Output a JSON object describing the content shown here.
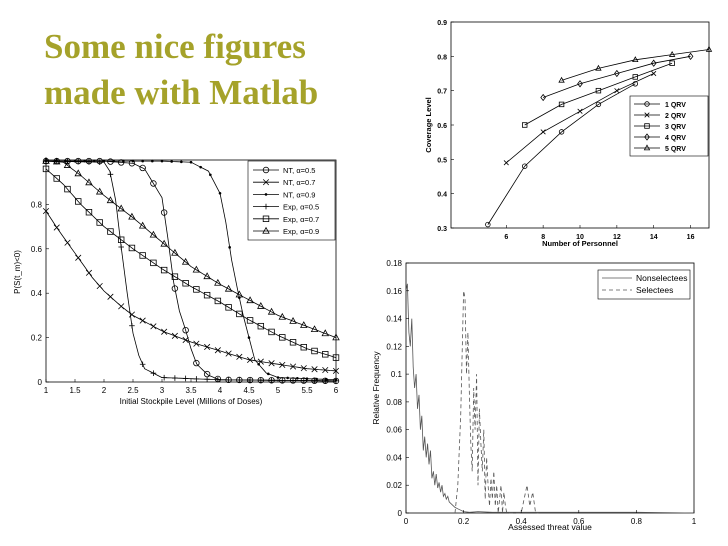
{
  "slide": {
    "title": "Some nice figures made with Matlab"
  },
  "chart_data": [
    {
      "type": "line",
      "xlabel": "Initial Stockpile Level (Millions of Doses)",
      "ylabel": "P(S(t_m)<0)",
      "xlim": [
        1,
        6
      ],
      "ylim": [
        0,
        1
      ],
      "xticks": [
        "1",
        "1.5",
        "2",
        "2.5",
        "3",
        "3.5",
        "4",
        "4.5",
        "5",
        "5.5",
        "6"
      ],
      "yticks": [
        "0",
        "0.2",
        "0.4",
        "0.6",
        "0.8"
      ],
      "legend_position": "top-right",
      "grid": false,
      "series": [
        {
          "name": "NT, α=0.5",
          "marker": "circle"
        },
        {
          "name": "NT, α=0.7",
          "marker": "x"
        },
        {
          "name": "NT, α=0.9",
          "marker": "dot"
        },
        {
          "name": "Exp, α=0.5",
          "marker": "plus"
        },
        {
          "name": "Exp, α=0.7",
          "marker": "square"
        },
        {
          "name": "Exp, α=0.9",
          "marker": "triangle"
        }
      ],
      "curves": [
        {
          "marker": "circle",
          "x0": 1,
          "x1": 6,
          "points": [
            [
              1,
              0.995
            ],
            [
              2,
              0.995
            ],
            [
              2.5,
              0.985
            ],
            [
              2.7,
              0.96
            ],
            [
              3,
              0.83
            ],
            [
              3.1,
              0.65
            ],
            [
              3.2,
              0.45
            ],
            [
              3.3,
              0.32
            ],
            [
              3.4,
              0.24
            ],
            [
              3.5,
              0.15
            ],
            [
              3.6,
              0.08
            ],
            [
              3.8,
              0.03
            ],
            [
              4,
              0.01
            ],
            [
              6,
              0.005
            ]
          ]
        },
        {
          "marker": "x",
          "x0": 1,
          "x1": 6,
          "points": [
            [
              1,
              0.77
            ],
            [
              1.2,
              0.69
            ],
            [
              1.5,
              0.58
            ],
            [
              1.8,
              0.47
            ],
            [
              2,
              0.41
            ],
            [
              2.3,
              0.34
            ],
            [
              2.5,
              0.3
            ],
            [
              3,
              0.23
            ],
            [
              3.5,
              0.18
            ],
            [
              4,
              0.14
            ],
            [
              4.5,
              0.1
            ],
            [
              5,
              0.08
            ],
            [
              5.5,
              0.06
            ],
            [
              6,
              0.05
            ]
          ]
        },
        {
          "marker": "dot",
          "x0": 1,
          "x1": 6,
          "points": [
            [
              1,
              0.995
            ],
            [
              3,
              0.995
            ],
            [
              3.5,
              0.99
            ],
            [
              3.8,
              0.95
            ],
            [
              4,
              0.85
            ],
            [
              4.1,
              0.72
            ],
            [
              4.2,
              0.55
            ],
            [
              4.3,
              0.42
            ],
            [
              4.4,
              0.3
            ],
            [
              4.5,
              0.2
            ],
            [
              4.6,
              0.1
            ],
            [
              4.8,
              0.04
            ],
            [
              5,
              0.02
            ],
            [
              6,
              0.01
            ]
          ]
        },
        {
          "marker": "plus",
          "x0": 1,
          "x1": 6,
          "points": [
            [
              1,
              0.995
            ],
            [
              2,
              0.99
            ],
            [
              2.1,
              0.95
            ],
            [
              2.2,
              0.82
            ],
            [
              2.3,
              0.6
            ],
            [
              2.4,
              0.4
            ],
            [
              2.5,
              0.22
            ],
            [
              2.6,
              0.12
            ],
            [
              2.7,
              0.06
            ],
            [
              3,
              0.02
            ],
            [
              4,
              0.01
            ],
            [
              6,
              0.005
            ]
          ]
        },
        {
          "marker": "square",
          "x0": 1,
          "x1": 6,
          "points": [
            [
              1,
              0.96
            ],
            [
              1.3,
              0.89
            ],
            [
              1.6,
              0.8
            ],
            [
              2,
              0.7
            ],
            [
              2.5,
              0.6
            ],
            [
              3,
              0.51
            ],
            [
              3.5,
              0.43
            ],
            [
              4,
              0.36
            ],
            [
              4.5,
              0.28
            ],
            [
              5,
              0.21
            ],
            [
              5.5,
              0.15
            ],
            [
              6,
              0.11
            ]
          ]
        },
        {
          "marker": "triangle",
          "x0": 1,
          "x1": 6,
          "points": [
            [
              1,
              0.995
            ],
            [
              1.3,
              0.99
            ],
            [
              1.6,
              0.93
            ],
            [
              2,
              0.84
            ],
            [
              2.5,
              0.74
            ],
            [
              3,
              0.63
            ],
            [
              3.5,
              0.52
            ],
            [
              4,
              0.44
            ],
            [
              4.5,
              0.37
            ],
            [
              5,
              0.3
            ],
            [
              5.5,
              0.25
            ],
            [
              6,
              0.2
            ]
          ]
        }
      ]
    },
    {
      "type": "line",
      "xlabel": "Number of Personnel",
      "ylabel": "Coverage Level",
      "xlim": [
        3,
        17
      ],
      "ylim": [
        0.3,
        0.9
      ],
      "xticks": [
        "6",
        "8",
        "10",
        "12",
        "14",
        "16"
      ],
      "yticks": [
        "0.3",
        "0.4",
        "0.5",
        "0.6",
        "0.7",
        "0.8",
        "0.9"
      ],
      "legend_position": "bottom-right",
      "grid": false,
      "series": [
        {
          "name": "1 QRV",
          "marker": "circle",
          "x": [
            5,
            7,
            9,
            11,
            13
          ],
          "y": [
            0.31,
            0.48,
            0.58,
            0.66,
            0.72
          ]
        },
        {
          "name": "2 QRV",
          "marker": "x",
          "x": [
            6,
            8,
            10,
            12,
            14
          ],
          "y": [
            0.49,
            0.58,
            0.64,
            0.7,
            0.75
          ]
        },
        {
          "name": "3 QRV",
          "marker": "square",
          "x": [
            7,
            9,
            11,
            13,
            15
          ],
          "y": [
            0.6,
            0.66,
            0.7,
            0.74,
            0.78
          ]
        },
        {
          "name": "4 QRV",
          "marker": "diamond",
          "x": [
            8,
            10,
            12,
            14,
            16
          ],
          "y": [
            0.68,
            0.72,
            0.75,
            0.78,
            0.8
          ]
        },
        {
          "name": "5 QRV",
          "marker": "triangle",
          "x": [
            9,
            11,
            13,
            15,
            17
          ],
          "y": [
            0.73,
            0.765,
            0.79,
            0.805,
            0.82
          ]
        }
      ]
    },
    {
      "type": "line",
      "xlabel": "Assessed threat value",
      "ylabel": "Relative Frequency",
      "xlim": [
        0,
        1
      ],
      "ylim": [
        0,
        0.18
      ],
      "xticks": [
        "0",
        "0.2",
        "0.4",
        "0.6",
        "0.8",
        "1"
      ],
      "yticks": [
        "0",
        "0.02",
        "0.04",
        "0.06",
        "0.08",
        "0.1",
        "0.12",
        "0.14",
        "0.16",
        "0.18"
      ],
      "legend_position": "top-right",
      "grid": false,
      "series": [
        {
          "name": "Nonselectees",
          "style": "solid",
          "x": [
            0,
            0.005,
            0.01,
            0.015,
            0.02,
            0.025,
            0.03,
            0.035,
            0.04,
            0.045,
            0.05,
            0.055,
            0.06,
            0.065,
            0.07,
            0.075,
            0.08,
            0.085,
            0.09,
            0.095,
            0.1,
            0.105,
            0.11,
            0.115,
            0.12,
            0.125,
            0.13,
            0.135,
            0.14,
            0.145,
            0.15,
            0.16,
            0.17,
            0.18,
            0.19,
            0.2,
            0.22,
            0.25,
            0.3,
            0.4,
            0.6,
            0.8,
            1.0
          ],
          "y": [
            0.16,
            0.165,
            0.13,
            0.12,
            0.14,
            0.105,
            0.09,
            0.1,
            0.075,
            0.085,
            0.06,
            0.07,
            0.045,
            0.055,
            0.04,
            0.05,
            0.035,
            0.045,
            0.025,
            0.03,
            0.02,
            0.028,
            0.018,
            0.022,
            0.015,
            0.02,
            0.012,
            0.014,
            0.01,
            0.012,
            0.008,
            0.006,
            0.004,
            0.003,
            0.002,
            0.001,
            0.0005,
            0.001,
            0.0005,
            0.0005,
            0.0005,
            0.0005,
            0
          ]
        },
        {
          "name": "Selectees",
          "style": "dashed",
          "x": [
            0.17,
            0.18,
            0.19,
            0.2,
            0.205,
            0.21,
            0.215,
            0.22,
            0.225,
            0.23,
            0.235,
            0.24,
            0.245,
            0.25,
            0.255,
            0.26,
            0.265,
            0.27,
            0.275,
            0.28,
            0.285,
            0.29,
            0.295,
            0.3,
            0.305,
            0.31,
            0.315,
            0.32,
            0.325,
            0.33,
            0.335,
            0.34,
            0.345,
            0.35,
            0.4,
            0.42,
            0.43,
            0.44,
            0.45,
            0.46
          ],
          "y": [
            0,
            0.02,
            0.07,
            0.16,
            0.155,
            0.1,
            0.13,
            0.085,
            0.05,
            0.03,
            0.09,
            0.06,
            0.1,
            0.02,
            0.075,
            0.05,
            0.03,
            0.06,
            0.01,
            0.04,
            0.02,
            0.005,
            0.025,
            0.01,
            0.03,
            0.005,
            0.02,
            0,
            0.01,
            0.02,
            0,
            0.015,
            0.005,
            0,
            0,
            0.02,
            0.005,
            0.015,
            0,
            0
          ]
        }
      ]
    }
  ]
}
